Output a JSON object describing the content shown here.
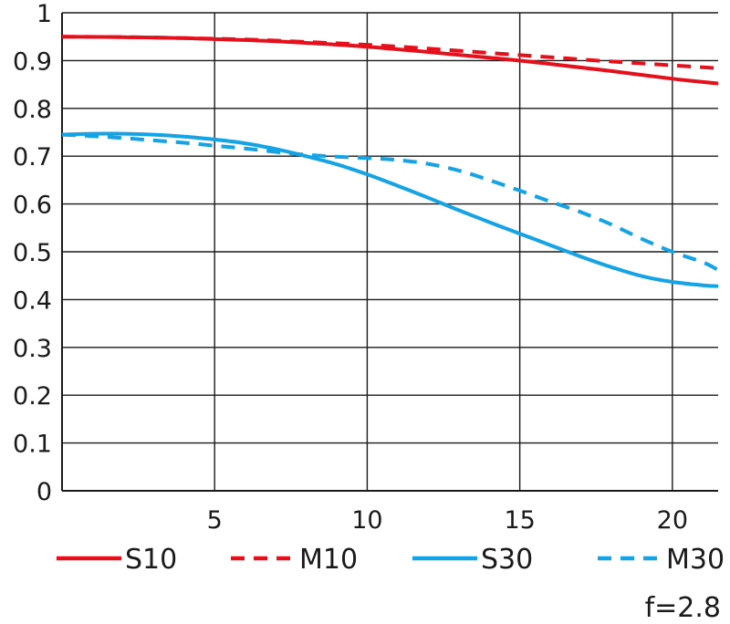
{
  "chart_data": {
    "type": "line",
    "title": "",
    "xlabel": "",
    "ylabel": "",
    "xlim": [
      0,
      21.5
    ],
    "ylim": [
      0,
      1
    ],
    "grid": true,
    "x_ticks": [
      5,
      10,
      15,
      20
    ],
    "x_tick_labels": [
      "5",
      "10",
      "15",
      "20"
    ],
    "y_ticks": [
      0,
      0.1,
      0.2,
      0.3,
      0.4,
      0.5,
      0.6,
      0.7,
      0.8,
      0.9,
      1
    ],
    "y_tick_labels": [
      "0",
      "0.1",
      "0.2",
      "0.3",
      "0.4",
      "0.5",
      "0.6",
      "0.7",
      "0.8",
      "0.9",
      "1"
    ],
    "legend_position": "bottom",
    "annotation": "f=2.8",
    "series": [
      {
        "name": "S10",
        "color": "#e4101b",
        "dash": "solid",
        "x": [
          0,
          2,
          4,
          6,
          8,
          10,
          12,
          14,
          16,
          18,
          20,
          21.5
        ],
        "y": [
          0.95,
          0.949,
          0.947,
          0.943,
          0.937,
          0.929,
          0.918,
          0.906,
          0.893,
          0.878,
          0.862,
          0.852
        ]
      },
      {
        "name": "M10",
        "color": "#e4101b",
        "dash": "dashed",
        "x": [
          0,
          2,
          4,
          6,
          8,
          10,
          12,
          14,
          16,
          18,
          20,
          21.5
        ],
        "y": [
          0.95,
          0.949,
          0.947,
          0.944,
          0.939,
          0.933,
          0.925,
          0.916,
          0.907,
          0.898,
          0.89,
          0.884
        ]
      },
      {
        "name": "S30",
        "color": "#14a3e5",
        "dash": "solid",
        "x": [
          0,
          1,
          2,
          3,
          4,
          5,
          6,
          7,
          8,
          9,
          10,
          11,
          12,
          13,
          14,
          15,
          16,
          17,
          18,
          19,
          20,
          21,
          21.5
        ],
        "y": [
          0.745,
          0.747,
          0.747,
          0.745,
          0.741,
          0.735,
          0.727,
          0.715,
          0.7,
          0.683,
          0.662,
          0.638,
          0.613,
          0.587,
          0.562,
          0.538,
          0.514,
          0.49,
          0.468,
          0.449,
          0.437,
          0.43,
          0.428
        ]
      },
      {
        "name": "M30",
        "color": "#14a3e5",
        "dash": "dashed",
        "x": [
          0,
          1,
          2,
          3,
          4,
          5,
          6,
          7,
          8,
          9,
          10,
          11,
          12,
          13,
          14,
          15,
          16,
          17,
          18,
          19,
          20,
          21,
          21.5
        ],
        "y": [
          0.745,
          0.742,
          0.738,
          0.733,
          0.728,
          0.722,
          0.716,
          0.709,
          0.703,
          0.699,
          0.696,
          0.692,
          0.684,
          0.67,
          0.65,
          0.628,
          0.605,
          0.583,
          0.557,
          0.527,
          0.5,
          0.478,
          0.462
        ]
      }
    ]
  }
}
